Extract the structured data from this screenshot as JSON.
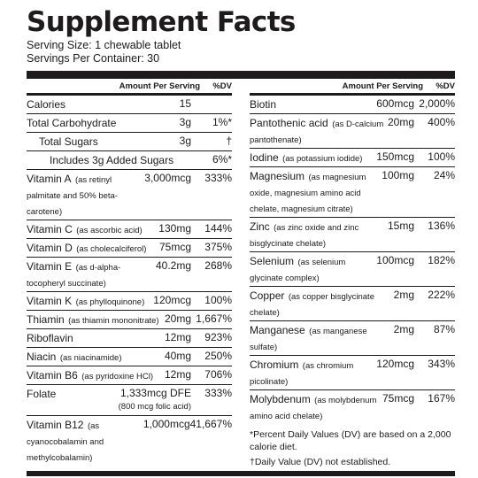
{
  "title": "Supplement Facts",
  "serving_size": "Serving Size: 1 chewable tablet",
  "servings_per_container": "Servings Per Container: 30",
  "left_header": {
    "amount": "Amount Per Serving",
    "dv": "%DV"
  },
  "right_header": {
    "amount": "Amount Per Serving",
    "dv": "%DV"
  },
  "left": [
    {
      "name": "Calories",
      "sub": "",
      "amount": "15",
      "dv": ""
    },
    {
      "name": "Total Carbohydrate",
      "sub": "",
      "amount": "3g",
      "dv": "1%*"
    },
    {
      "name": "Total Sugars",
      "sub": "",
      "amount": "3g",
      "dv": "†"
    },
    {
      "name": "Includes 3g Added Sugars",
      "sub": "",
      "amount": "",
      "dv": "6%*"
    },
    {
      "name": "Vitamin A",
      "sub": "(as retinyl palmitate and 50% beta-carotene)",
      "amount": "3,000mcg",
      "dv": "333%"
    },
    {
      "name": "Vitamin C",
      "sub": "(as ascorbic acid)",
      "amount": "130mg",
      "dv": "144%"
    },
    {
      "name": "Vitamin D",
      "sub": "(as cholecalciferol)",
      "amount": "75mcg",
      "dv": "375%"
    },
    {
      "name": "Vitamin E",
      "sub": "(as d-alpha-tocopheryl succinate)",
      "amount": "40.2mg",
      "dv": "268%"
    },
    {
      "name": "Vitamin K",
      "sub": "(as phylloquinone)",
      "amount": "120mcg",
      "dv": "100%"
    },
    {
      "name": "Thiamin",
      "sub": "(as thiamin mononitrate)",
      "amount": "20mg",
      "dv": "1,667%"
    },
    {
      "name": "Riboflavin",
      "sub": "",
      "amount": "12mg",
      "dv": "923%"
    },
    {
      "name": "Niacin",
      "sub": "(as niacinamide)",
      "amount": "40mg",
      "dv": "250%"
    },
    {
      "name": "Vitamin B6",
      "sub": "(as pyridoxine HCl)",
      "amount": "12mg",
      "dv": "706%"
    },
    {
      "name": "Folate",
      "sub": "",
      "amount": "1,333mcg DFE",
      "amount_sub": "(800 mcg folic acid)",
      "dv": "333%"
    },
    {
      "name": "Vitamin B12",
      "sub": "(as cyanocobalamin and methylcobalamin)",
      "amount": "1,000mcg",
      "dv": "41,667%"
    }
  ],
  "right": [
    {
      "name": "Biotin",
      "sub": "",
      "amount": "600mcg",
      "dv": "2,000%"
    },
    {
      "name": "Pantothenic acid",
      "sub": "(as D-calcium pantothenate)",
      "amount": "20mg",
      "dv": "400%"
    },
    {
      "name": "Iodine",
      "sub": "(as potassium iodide)",
      "amount": "150mcg",
      "dv": "100%"
    },
    {
      "name": "Magnesium",
      "sub": "(as magnesium oxide, magnesium amino acid chelate, magnesium citrate)",
      "amount": "100mg",
      "dv": "24%"
    },
    {
      "name": "Zinc",
      "sub": "(as zinc oxide and zinc bisglycinate chelate)",
      "amount": "15mg",
      "dv": "136%"
    },
    {
      "name": "Selenium",
      "sub": "(as selenium glycinate complex)",
      "amount": "100mcg",
      "dv": "182%"
    },
    {
      "name": "Copper",
      "sub": "(as copper bisglycinate chelate)",
      "amount": "2mg",
      "dv": "222%"
    },
    {
      "name": "Manganese",
      "sub": "(as manganese sulfate)",
      "amount": "2mg",
      "dv": "87%"
    },
    {
      "name": "Chromium",
      "sub": "(as chromium picolinate)",
      "amount": "120mcg",
      "dv": "343%"
    },
    {
      "name": "Molybdenum",
      "sub": "(as molybdenum amino acid chelate)",
      "amount": "75mcg",
      "dv": "167%"
    }
  ],
  "footnote_dv": "*Percent Daily Values (DV) are based on a 2,000 calorie diet.",
  "footnote_dagger": "†Daily Value (DV) not established."
}
